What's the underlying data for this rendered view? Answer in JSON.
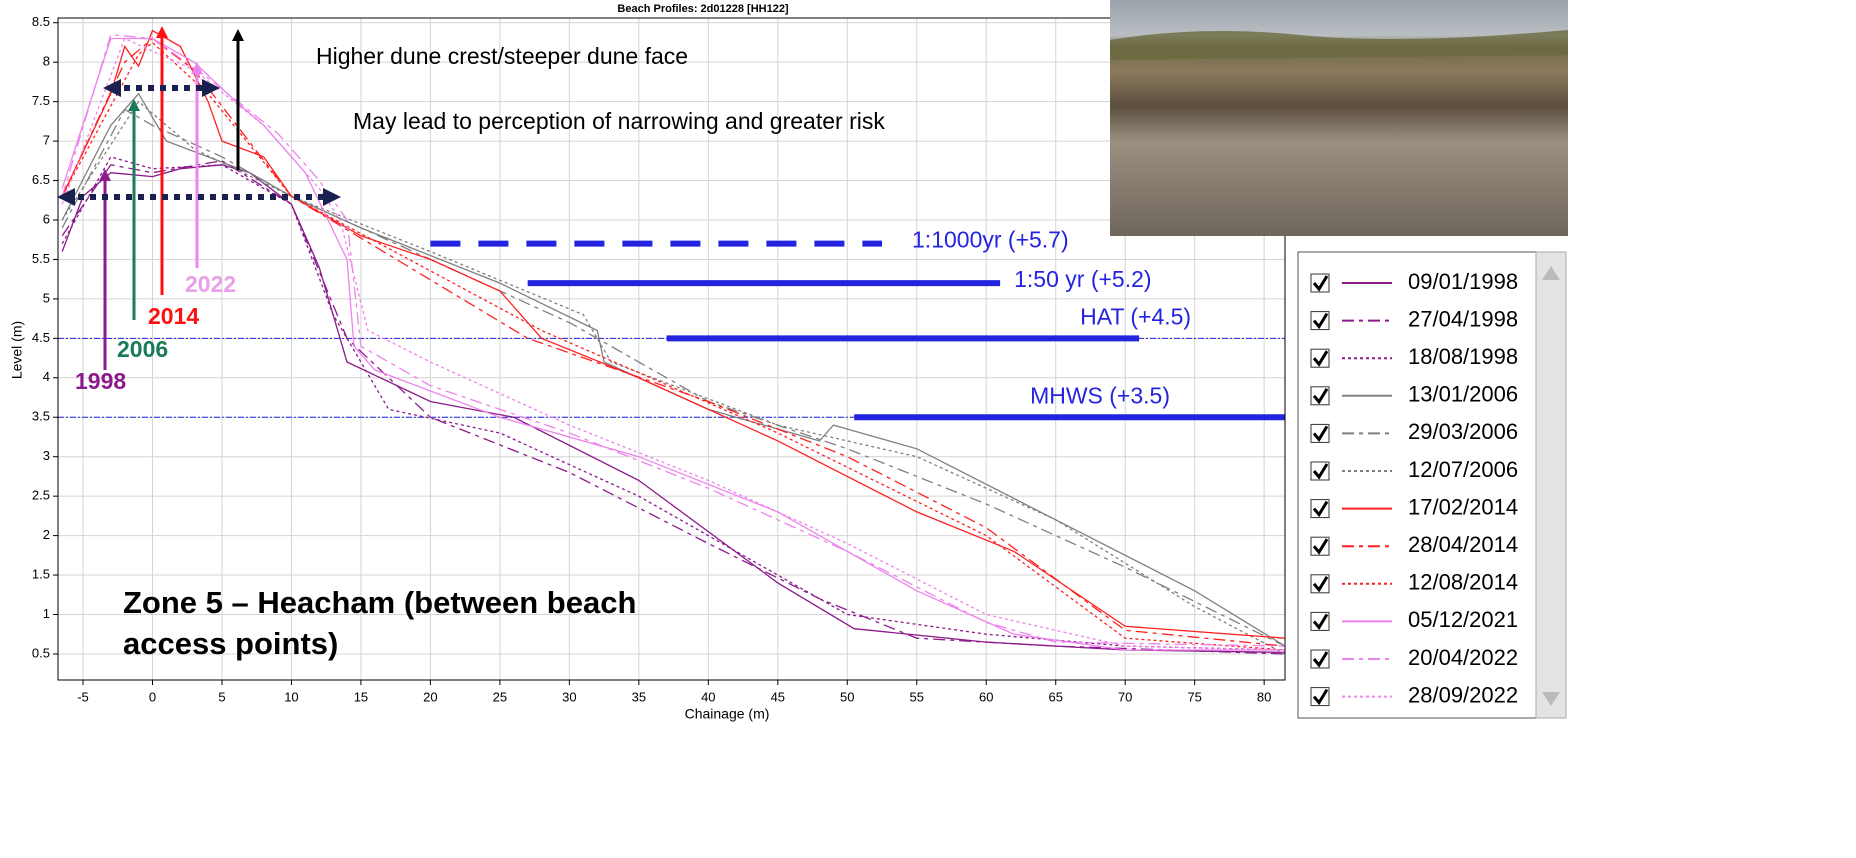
{
  "chart_data": {
    "type": "line",
    "title": "Beach Profiles: 2d01228 [HH122]",
    "x_label": "Chainage (m)",
    "y_label": "Level (m)",
    "xlim": [
      -6.8,
      81.5
    ],
    "ylim": [
      0.17,
      8.56
    ],
    "xticks": [
      -5,
      0,
      5,
      10,
      15,
      20,
      25,
      30,
      35,
      40,
      45,
      50,
      55,
      60,
      65,
      70,
      75,
      80
    ],
    "yticks": [
      0.5,
      1,
      1.5,
      2,
      2.5,
      3,
      3.5,
      4,
      4.5,
      5,
      5.5,
      6,
      6.5,
      7,
      7.5,
      8,
      8.5
    ],
    "grid": true,
    "series": [
      {
        "name": "09/01/1998",
        "color": "#8b1a8b",
        "dash": "solid",
        "x": [
          -6.5,
          -5,
          -3,
          0,
          2,
          5,
          7,
          10,
          12,
          14,
          20,
          26,
          35,
          45,
          50.5,
          60,
          70,
          81.5
        ],
        "values": [
          5.6,
          6.3,
          6.6,
          6.55,
          6.65,
          6.7,
          6.6,
          6.2,
          5.4,
          4.2,
          3.7,
          3.5,
          2.7,
          1.4,
          0.82,
          0.65,
          0.55,
          0.52
        ]
      },
      {
        "name": "27/04/1998",
        "color": "#8b1a8b",
        "dash": "dashdot",
        "x": [
          -6.5,
          -3,
          0,
          5,
          10,
          14,
          20,
          30,
          40,
          48,
          55,
          65,
          81.5
        ],
        "values": [
          5.8,
          6.7,
          6.6,
          6.75,
          6.2,
          4.5,
          3.5,
          2.8,
          1.9,
          1.2,
          0.7,
          0.6,
          0.5
        ]
      },
      {
        "name": "18/08/1998",
        "color": "#8b1a8b",
        "dash": "dot",
        "x": [
          -6.5,
          -3,
          0,
          5,
          10,
          13,
          17,
          25,
          35,
          50,
          60,
          70,
          81.5
        ],
        "values": [
          5.7,
          6.8,
          6.65,
          6.7,
          6.2,
          4.8,
          3.6,
          3.3,
          2.5,
          1.0,
          0.75,
          0.6,
          0.55
        ]
      },
      {
        "name": "13/01/2006",
        "color": "#808080",
        "dash": "solid",
        "x": [
          -6.5,
          -3,
          -1,
          1,
          4,
          7,
          10,
          15,
          25,
          32,
          32.5,
          40,
          48,
          49,
          55,
          65,
          75,
          81.5
        ],
        "values": [
          6.0,
          7.2,
          7.6,
          7.0,
          6.8,
          6.6,
          6.3,
          5.9,
          5.2,
          4.6,
          4.2,
          3.6,
          3.2,
          3.4,
          3.1,
          2.2,
          1.3,
          0.6
        ]
      },
      {
        "name": "29/03/2006",
        "color": "#808080",
        "dash": "dashdot",
        "x": [
          -6.5,
          -2,
          0,
          5,
          10,
          20,
          30,
          40,
          50,
          60,
          70,
          81.5
        ],
        "values": [
          5.9,
          7.4,
          7.2,
          6.8,
          6.3,
          5.5,
          4.7,
          3.7,
          3.1,
          2.4,
          1.6,
          0.6
        ]
      },
      {
        "name": "12/07/2006",
        "color": "#808080",
        "dash": "dot",
        "x": [
          -6.5,
          -1,
          3,
          10,
          20,
          31,
          33,
          45,
          55,
          65,
          75,
          81.5
        ],
        "values": [
          6.0,
          7.5,
          6.9,
          6.3,
          5.6,
          4.8,
          4.2,
          3.4,
          3.0,
          2.2,
          1.1,
          0.5
        ]
      },
      {
        "name": "17/02/2014",
        "color": "#ff2020",
        "dash": "solid",
        "x": [
          -6.5,
          -3,
          -2,
          -1,
          0,
          2,
          4,
          5,
          8,
          10,
          15,
          20,
          25,
          28,
          35,
          45,
          55,
          62,
          70,
          81.5
        ],
        "values": [
          6.3,
          7.6,
          8.2,
          7.95,
          8.4,
          8.2,
          7.5,
          7.0,
          6.8,
          6.3,
          5.8,
          5.5,
          5.1,
          4.5,
          4.0,
          3.2,
          2.3,
          1.8,
          0.85,
          0.7
        ]
      },
      {
        "name": "28/04/2014",
        "color": "#ff2020",
        "dash": "dashdot",
        "x": [
          -6.5,
          -2,
          0,
          3,
          10,
          27,
          40,
          50,
          60,
          70,
          81.5
        ],
        "values": [
          6.3,
          8.0,
          8.3,
          7.9,
          6.3,
          4.5,
          3.7,
          3.0,
          2.1,
          0.8,
          0.6
        ]
      },
      {
        "name": "12/08/2014",
        "color": "#ff2020",
        "dash": "dot",
        "x": [
          -6.5,
          -1,
          0,
          4,
          10,
          28,
          45,
          60,
          70,
          81.5
        ],
        "values": [
          6.3,
          8.1,
          8.25,
          7.6,
          6.3,
          4.6,
          3.3,
          2.0,
          0.7,
          0.55
        ]
      },
      {
        "name": "05/12/2021",
        "color": "#ee82ee",
        "dash": "solid",
        "x": [
          -6.5,
          -3,
          0,
          3,
          6,
          8,
          11,
          14,
          14.5,
          16,
          25,
          35,
          45,
          55,
          62,
          70,
          81.5
        ],
        "values": [
          6.4,
          8.3,
          8.3,
          8.0,
          7.5,
          7.2,
          6.6,
          5.5,
          4.4,
          4.1,
          3.5,
          3.0,
          2.3,
          1.3,
          0.75,
          0.55,
          0.55
        ]
      },
      {
        "name": "20/04/2022",
        "color": "#ee82ee",
        "dash": "dashdot",
        "x": [
          -6.5,
          -3,
          0,
          4,
          9,
          12,
          14,
          15,
          20,
          30,
          40,
          50,
          60,
          65,
          81.5
        ],
        "values": [
          6.3,
          8.35,
          8.3,
          7.8,
          7.1,
          6.5,
          6.0,
          4.4,
          3.9,
          3.3,
          2.6,
          1.8,
          0.9,
          0.65,
          0.6
        ]
      },
      {
        "name": "28/09/2022",
        "color": "#ee82ee",
        "dash": "dot",
        "x": [
          -6.5,
          -2,
          3,
          8,
          12,
          13.5,
          15.5,
          20,
          30,
          40,
          50,
          60,
          70,
          81.5
        ],
        "values": [
          6.2,
          8.3,
          7.9,
          7.2,
          6.4,
          6.0,
          4.6,
          4.2,
          3.4,
          2.7,
          1.9,
          1.0,
          0.6,
          0.55
        ]
      }
    ],
    "reference_lines": [
      {
        "label": "1:1000yr (+5.7)",
        "value": 5.7,
        "x_start": 20,
        "x_end": 52.5,
        "style": "dashed",
        "guide": false
      },
      {
        "label": "1:50 yr (+5.2)",
        "value": 5.2,
        "x_start": 27,
        "x_end": 61,
        "style": "solid",
        "guide": false
      },
      {
        "label": "HAT (+4.5)",
        "value": 4.5,
        "x_start": 37,
        "x_end": 71,
        "style": "solid",
        "guide": true
      },
      {
        "label": "MHWS (+3.5)",
        "value": 3.5,
        "x_start": 50.5,
        "x_end": 81.5,
        "style": "solid",
        "guide": true
      }
    ],
    "reference_color": "#2323e0",
    "annotations": {
      "crest": "Higher dune crest/steeper dune face",
      "perception": "May lead to perception of narrowing and greater risk",
      "zone": "Zone 5 – Heacham (between beach access points)",
      "year_1998": "1998",
      "year_2006": "2006",
      "year_2014": "2014",
      "year_2022": "2022"
    }
  }
}
